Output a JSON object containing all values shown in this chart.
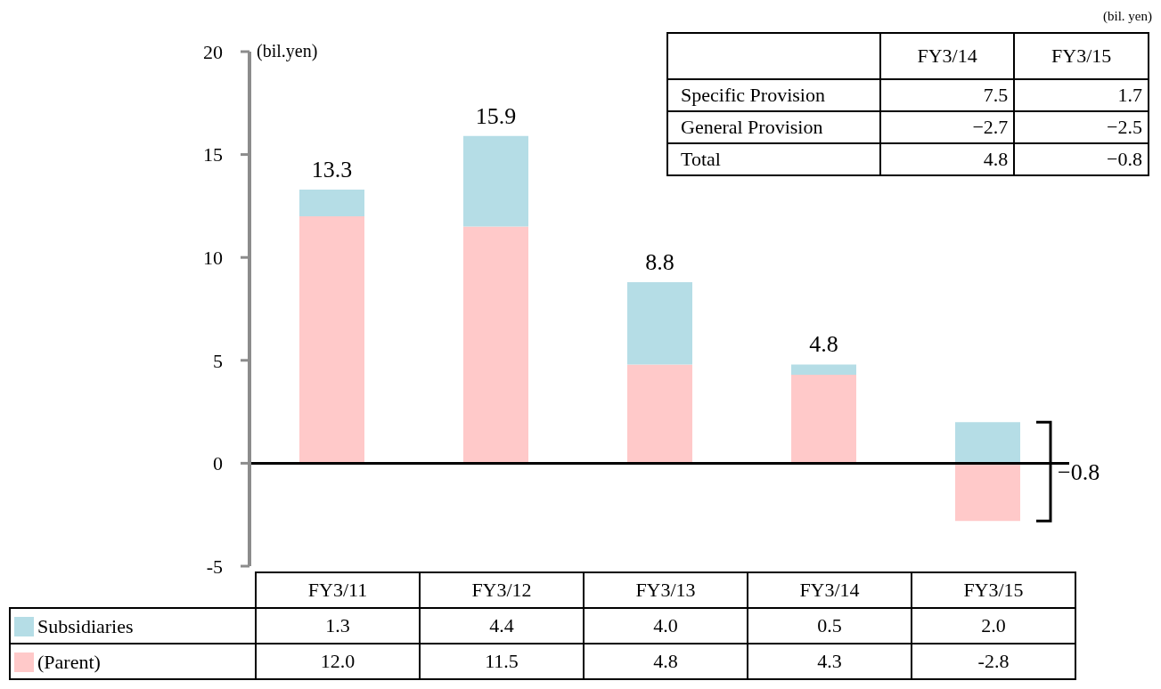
{
  "chart_data": [
    {
      "type": "bar",
      "stacked": true,
      "ylabel": "(bil.yen)",
      "categories": [
        "FY3/11",
        "FY3/12",
        "FY3/13",
        "FY3/14",
        "FY3/15"
      ],
      "series": [
        {
          "name": "(Parent)",
          "color": "#ffc9c9",
          "values": [
            12.0,
            11.5,
            4.8,
            4.3,
            -2.8
          ],
          "value_labels": [
            "12.0",
            "11.5",
            "4.8",
            "4.3",
            "-2.8"
          ]
        },
        {
          "name": "Subsidiaries",
          "color": "#b5dde6",
          "values": [
            1.3,
            4.4,
            4.0,
            0.5,
            2.0
          ],
          "value_labels": [
            "1.3",
            "4.4",
            "4.0",
            "0.5",
            "2.0"
          ]
        }
      ],
      "totals": [
        "13.3",
        "15.9",
        "8.8",
        "4.8",
        "−0.8"
      ],
      "ylim": [
        -5,
        20
      ],
      "yticks": [
        -5,
        0,
        5,
        10,
        15,
        20
      ],
      "ref_lines": [
        {
          "axis": "y",
          "value": 0,
          "color": "#000000"
        }
      ],
      "legend": "bottom",
      "grid": false
    },
    {
      "type": "other",
      "annotations": [
        "(bil. yen)"
      ],
      "categories": [
        "FY3/14",
        "FY3/15"
      ],
      "y_categories": [
        "Specific Provision",
        "General Provision",
        "Total"
      ],
      "cell_labels": [
        [
          "7.5",
          "1.7"
        ],
        [
          "−2.7",
          "−2.5"
        ],
        [
          "4.8",
          "−0.8"
        ]
      ]
    }
  ]
}
